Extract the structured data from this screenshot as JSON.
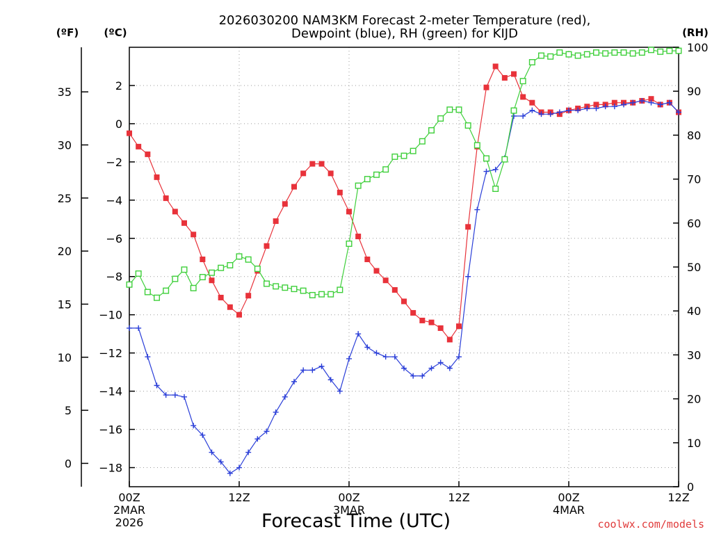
{
  "chart_data": {
    "type": "line",
    "title_line1": "2026030200 NAM3KM Forecast 2-meter Temperature (red),",
    "title_line2": "Dewpoint (blue), RH (green) for KIJD",
    "xlabel": "Forecast Time (UTC)",
    "watermark": "coolwx.com/models",
    "left_outer_axis": {
      "unit_label": "(ºF)",
      "ticks": [
        0,
        5,
        10,
        15,
        20,
        25,
        30,
        35
      ]
    },
    "left_axis": {
      "unit_label": "(ºC)",
      "ylim": [
        -19,
        4
      ],
      "ticks": [
        -18,
        -16,
        -14,
        -12,
        -10,
        -8,
        -6,
        -4,
        -2,
        0,
        2
      ]
    },
    "right_axis": {
      "unit_label": "(RH)",
      "ylim": [
        0,
        100
      ],
      "ticks": [
        0,
        10,
        20,
        30,
        40,
        50,
        60,
        70,
        80,
        90,
        100
      ]
    },
    "x_hours_range": [
      0,
      60
    ],
    "x_ticks": [
      {
        "hour": 0,
        "label": "00Z",
        "sub1": "2MAR",
        "sub2": "2026"
      },
      {
        "hour": 12,
        "label": "12Z",
        "sub1": "",
        "sub2": ""
      },
      {
        "hour": 24,
        "label": "00Z",
        "sub1": "3MAR",
        "sub2": ""
      },
      {
        "hour": 36,
        "label": "12Z",
        "sub1": "",
        "sub2": ""
      },
      {
        "hour": 48,
        "label": "00Z",
        "sub1": "4MAR",
        "sub2": ""
      },
      {
        "hour": 60,
        "label": "12Z",
        "sub1": "",
        "sub2": ""
      }
    ],
    "hours": [
      0,
      1,
      2,
      3,
      4,
      5,
      6,
      7,
      8,
      9,
      10,
      11,
      12,
      13,
      14,
      15,
      16,
      17,
      18,
      19,
      20,
      21,
      22,
      23,
      24,
      25,
      26,
      27,
      28,
      29,
      30,
      31,
      32,
      33,
      34,
      35,
      36,
      37,
      38,
      39,
      40,
      41,
      42,
      43,
      44,
      45,
      46,
      47,
      48,
      49,
      50,
      51,
      52,
      53,
      54,
      55,
      56,
      57,
      58,
      59,
      60
    ],
    "series": [
      {
        "name": "Temperature",
        "color": "#e8323a",
        "marker": "filled-square",
        "axis": "celsius",
        "values": [
          -0.5,
          -1.2,
          -1.6,
          -2.8,
          -3.9,
          -4.6,
          -5.2,
          -5.8,
          -7.1,
          -8.2,
          -9.1,
          -9.6,
          -10.0,
          -9.0,
          -7.7,
          -6.4,
          -5.1,
          -4.2,
          -3.3,
          -2.6,
          -2.1,
          -2.1,
          -2.6,
          -3.6,
          -4.6,
          -5.9,
          -7.1,
          -7.7,
          -8.2,
          -8.7,
          -9.3,
          -9.9,
          -10.3,
          -10.4,
          -10.7,
          -11.3,
          -10.6,
          -5.4,
          -1.2,
          1.9,
          3.0,
          2.4,
          2.6,
          1.4,
          1.1,
          0.6,
          0.6,
          0.5,
          0.7,
          0.8,
          0.9,
          1.0,
          1.0,
          1.1,
          1.1,
          1.1,
          1.2,
          1.3,
          1.0,
          1.1,
          0.6
        ]
      },
      {
        "name": "Dewpoint",
        "color": "#2a3ed8",
        "marker": "plus",
        "axis": "celsius",
        "values": [
          -10.7,
          -10.7,
          -12.2,
          -13.7,
          -14.2,
          -14.2,
          -14.3,
          -15.8,
          -16.3,
          -17.2,
          -17.7,
          -18.3,
          -18.0,
          -17.2,
          -16.5,
          -16.1,
          -15.1,
          -14.3,
          -13.5,
          -12.9,
          -12.9,
          -12.7,
          -13.4,
          -14.0,
          -12.3,
          -11.0,
          -11.7,
          -12.0,
          -12.2,
          -12.2,
          -12.8,
          -13.2,
          -13.2,
          -12.8,
          -12.5,
          -12.8,
          -12.2,
          -8.0,
          -4.5,
          -2.5,
          -2.4,
          -1.8,
          0.4,
          0.4,
          0.7,
          0.5,
          0.5,
          0.6,
          0.7,
          0.7,
          0.8,
          0.8,
          0.9,
          0.9,
          1.0,
          1.1,
          1.2,
          1.1,
          1.0,
          1.1,
          0.6
        ]
      },
      {
        "name": "RH",
        "color": "#3ecf3a",
        "marker": "open-square",
        "axis": "rh",
        "values": [
          46.0,
          48.5,
          44.3,
          43.0,
          44.6,
          47.3,
          49.4,
          45.2,
          47.7,
          48.7,
          49.8,
          50.4,
          52.4,
          51.7,
          49.6,
          46.2,
          45.6,
          45.3,
          45.0,
          44.6,
          43.6,
          43.8,
          43.8,
          44.8,
          55.3,
          68.5,
          70.0,
          71.0,
          72.2,
          75.1,
          75.3,
          76.4,
          78.6,
          81.1,
          83.8,
          85.8,
          85.8,
          82.2,
          77.7,
          74.7,
          67.8,
          74.5,
          85.6,
          92.3,
          96.6,
          98.1,
          97.9,
          98.8,
          98.4,
          98.1,
          98.4,
          98.8,
          98.6,
          98.8,
          98.8,
          98.6,
          98.8,
          99.4,
          99.0,
          99.2,
          99.2
        ]
      }
    ]
  }
}
